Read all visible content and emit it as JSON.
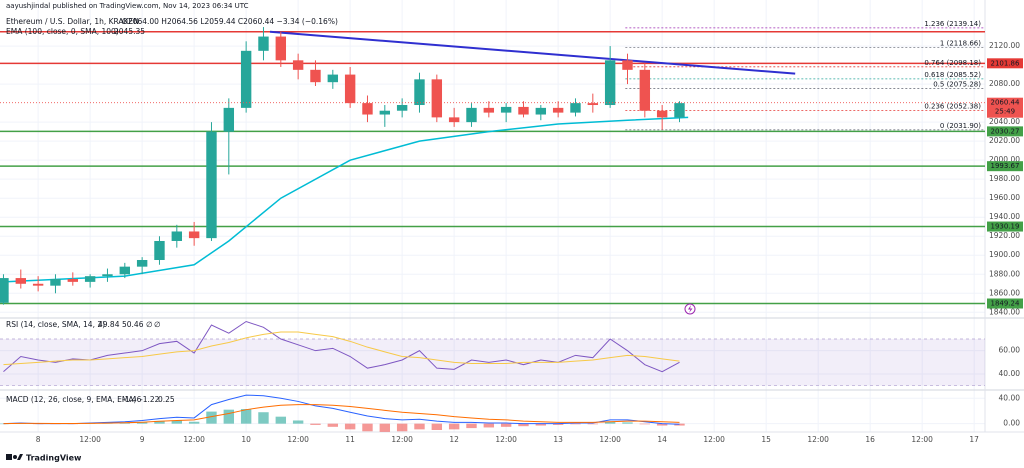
{
  "header": {
    "publisher": "aayushjindal published on TradingView.com, Nov 14, 2023 06:34 UTC",
    "symbol": "Ethereum / U.S. Dollar, 1h, KRAKEN",
    "ohlc": "O2064.00 H2064.56 L2059.44 C2060.44 −3.34 (−0.16%)",
    "ema_label": "EMA (100, close, 0, SMA, 100)",
    "ema_value": 2045.35
  },
  "footer": {
    "brand": "TradingView"
  },
  "chart_data": [
    {
      "type": "candlestick",
      "x": [
        -8,
        -4,
        0,
        4,
        8,
        12,
        16,
        20,
        24,
        28,
        32,
        36,
        40,
        44,
        48,
        52,
        56,
        60,
        64,
        68,
        72,
        76,
        80,
        84,
        88,
        92,
        96,
        100,
        104,
        108,
        112,
        116,
        120,
        124,
        128,
        132,
        136,
        140,
        144,
        148
      ],
      "open": [
        1850,
        1876,
        1870,
        1868,
        1875,
        1872,
        1878,
        1880,
        1888,
        1895,
        1915,
        1925,
        1918,
        2030,
        2055,
        2115,
        2130,
        2105,
        2095,
        2082,
        2090,
        2060,
        2048,
        2052,
        2058,
        2085,
        2045,
        2040,
        2055,
        2050,
        2056,
        2048,
        2055,
        2050,
        2060,
        2058,
        2105,
        2095,
        2052,
        2045
      ],
      "high": [
        1880,
        1885,
        1878,
        1880,
        1882,
        1880,
        1886,
        1892,
        1898,
        1920,
        1932,
        1935,
        2040,
        2065,
        2125,
        2140,
        2135,
        2112,
        2105,
        2095,
        2098,
        2068,
        2058,
        2065,
        2092,
        2090,
        2055,
        2060,
        2062,
        2060,
        2062,
        2058,
        2062,
        2065,
        2070,
        2120,
        2112,
        2102,
        2058,
        2062
      ],
      "low": [
        1848,
        1865,
        1862,
        1860,
        1868,
        1866,
        1872,
        1876,
        1880,
        1890,
        1908,
        1910,
        1915,
        1985,
        2050,
        2105,
        2098,
        2085,
        2078,
        2075,
        2055,
        2040,
        2035,
        2045,
        2050,
        2040,
        2035,
        2035,
        2045,
        2040,
        2045,
        2042,
        2045,
        2046,
        2050,
        2055,
        2080,
        2045,
        2032,
        2040
      ],
      "close": [
        1876,
        1870,
        1868,
        1875,
        1872,
        1878,
        1880,
        1888,
        1895,
        1915,
        1925,
        1918,
        2030,
        2055,
        2115,
        2130,
        2105,
        2095,
        2082,
        2090,
        2060,
        2048,
        2052,
        2058,
        2085,
        2045,
        2040,
        2055,
        2050,
        2056,
        2048,
        2055,
        2050,
        2060,
        2058,
        2105,
        2095,
        2052,
        2045,
        2060
      ],
      "up_color": "#26a69a",
      "down_color": "#ef5350",
      "xlim": [
        -8.8,
        218.5
      ],
      "xticks": [
        {
          "value": 0,
          "label": "8"
        },
        {
          "value": 12,
          "label": "12:00"
        },
        {
          "value": 24,
          "label": "9"
        },
        {
          "value": 36,
          "label": "12:00"
        },
        {
          "value": 48,
          "label": "10"
        },
        {
          "value": 60,
          "label": "12:00"
        },
        {
          "value": 72,
          "label": "11"
        },
        {
          "value": 84,
          "label": "12:00"
        },
        {
          "value": 96,
          "label": "12"
        },
        {
          "value": 108,
          "label": "12:00"
        },
        {
          "value": 120,
          "label": "13"
        },
        {
          "value": 132,
          "label": "12:00"
        },
        {
          "value": 144,
          "label": "14"
        },
        {
          "value": 156,
          "label": "12:00"
        },
        {
          "value": 168,
          "label": "15"
        },
        {
          "value": 180,
          "label": "12:00"
        },
        {
          "value": 192,
          "label": "16"
        },
        {
          "value": 204,
          "label": "12:00"
        },
        {
          "value": 216,
          "label": "17"
        }
      ],
      "ylim": [
        1834,
        2139
      ],
      "yticks": [
        {
          "value": 2120,
          "label": "2120.00"
        },
        {
          "value": 2080,
          "label": "2080.00"
        },
        {
          "value": 2040,
          "label": "2040.00"
        },
        {
          "value": 2020,
          "label": "2020.00"
        },
        {
          "value": 2000,
          "label": "2000.00"
        },
        {
          "value": 1980,
          "label": "1980.00"
        },
        {
          "value": 1960,
          "label": "1960.00"
        },
        {
          "value": 1940,
          "label": "1940.00"
        },
        {
          "value": 1920,
          "label": "1920.00"
        },
        {
          "value": 1900,
          "label": "1900.00"
        },
        {
          "value": 1880,
          "label": "1880.00"
        },
        {
          "value": 1860,
          "label": "1860.00"
        },
        {
          "value": 1840,
          "label": "1840.00"
        }
      ],
      "grid": true,
      "ema": {
        "x": [
          -8,
          20,
          36,
          44,
          56,
          72,
          88,
          104,
          120,
          136,
          150
        ],
        "values": [
          1872,
          1878,
          1890,
          1915,
          1960,
          2000,
          2020,
          2030,
          2038,
          2042,
          2045
        ],
        "color": "#00bcd4"
      },
      "trendline": {
        "x": [
          53.5,
          174.7
        ],
        "values": [
          2135,
          2091
        ],
        "color": "#2f2fd0"
      },
      "levels": [
        {
          "value": 2135,
          "color": "#e53935",
          "tag": false
        },
        {
          "value": 2101.86,
          "color": "#e53935",
          "tag": true
        },
        {
          "value": 2030.27,
          "color": "#43a047",
          "tag": true
        },
        {
          "value": 1993.67,
          "color": "#43a047",
          "tag": true
        },
        {
          "value": 1930.19,
          "color": "#43a047",
          "tag": true
        },
        {
          "value": 1849.24,
          "color": "#43a047",
          "tag": true
        }
      ],
      "fibonacci": {
        "x_start": 135.5,
        "levels": [
          {
            "label": "1.236 (2139.14)",
            "value": 2139.14,
            "color": "#9c27b0"
          },
          {
            "label": "1 (2118.66)",
            "value": 2118.66,
            "color": "#787b86"
          },
          {
            "label": "0.764 (2098.18)",
            "value": 2098.18,
            "color": "#e53935"
          },
          {
            "label": "0.618 (2085.52)",
            "value": 2085.52,
            "color": "#26a69a"
          },
          {
            "label": "0.5 (2075.28)",
            "value": 2075.28,
            "color": "#787b86"
          },
          {
            "label": "0.236 (2052.38)",
            "value": 2052.38,
            "color": "#e53935"
          },
          {
            "label": "0 (2031.90)",
            "value": 2031.9,
            "color": "#787b86"
          }
        ]
      },
      "last_price": {
        "value": 2060.44,
        "countdown": "25:49",
        "color": "#ef5350"
      }
    },
    {
      "type": "line",
      "title": "RSI (14, close, SMA, 14, 2)",
      "legend_values": [
        49.84,
        50.46
      ],
      "legend_extra": [
        "∅",
        "∅"
      ],
      "x": [
        -8,
        -4,
        0,
        4,
        8,
        12,
        16,
        20,
        24,
        28,
        32,
        36,
        40,
        44,
        48,
        52,
        56,
        60,
        64,
        68,
        72,
        76,
        80,
        84,
        88,
        92,
        96,
        100,
        104,
        108,
        112,
        116,
        120,
        124,
        128,
        132,
        136,
        140,
        144,
        148
      ],
      "series": [
        {
          "color": "#7e57c2",
          "values": [
            42,
            55,
            52,
            50,
            53,
            52,
            56,
            58,
            60,
            66,
            68,
            58,
            82,
            75,
            85,
            80,
            70,
            65,
            60,
            62,
            55,
            45,
            48,
            52,
            60,
            45,
            44,
            52,
            50,
            52,
            48,
            52,
            50,
            56,
            54,
            70,
            60,
            48,
            42,
            50
          ]
        },
        {
          "color": "#f7c948",
          "values": [
            48,
            49,
            50,
            51,
            52,
            52,
            53,
            54,
            55,
            57,
            59,
            60,
            64,
            67,
            71,
            74,
            76,
            76,
            74,
            72,
            68,
            63,
            59,
            55,
            54,
            52,
            50,
            49,
            49,
            49,
            50,
            50,
            50,
            51,
            52,
            54,
            56,
            55,
            53,
            51
          ]
        }
      ],
      "ylim": [
        28,
        88
      ],
      "yticks": [
        {
          "value": 60,
          "label": "60.00"
        },
        {
          "value": 40,
          "label": "40.00"
        }
      ],
      "band": [
        30,
        70
      ],
      "band_color": "#7e57c2"
    },
    {
      "type": "macd",
      "title": "MACD (12, 26, close, 9, EMA, EMA)",
      "legend_values": [
        -1.46,
        -1.22,
        0.25
      ],
      "x": [
        -8,
        -4,
        0,
        4,
        8,
        12,
        16,
        20,
        24,
        28,
        32,
        36,
        40,
        44,
        48,
        52,
        56,
        60,
        64,
        68,
        72,
        76,
        80,
        84,
        88,
        92,
        96,
        100,
        104,
        108,
        112,
        116,
        120,
        124,
        128,
        132,
        136,
        140,
        144,
        148
      ],
      "histogram": {
        "up_color": "#26a69a",
        "down_color": "#ef5350",
        "values": [
          0,
          0.5,
          -0.5,
          -0.3,
          -0.2,
          0.6,
          1.2,
          1.6,
          2.7,
          4.3,
          5,
          3,
          19,
          22,
          23,
          18,
          11,
          5,
          -2,
          -5,
          -9,
          -12,
          -13,
          -12,
          -9,
          -10,
          -9,
          -7,
          -6,
          -5,
          -4,
          -3,
          -2,
          -1,
          -1,
          3,
          2,
          -1,
          -3,
          -3
        ]
      },
      "series": [
        {
          "color": "#2962ff",
          "values": [
            0,
            1,
            0,
            0,
            0,
            1,
            2,
            3,
            5,
            8,
            10,
            9,
            30,
            38,
            45,
            44,
            40,
            35,
            28,
            24,
            18,
            12,
            8,
            6,
            7,
            4,
            2,
            2,
            1,
            1,
            0,
            0,
            0,
            1,
            1,
            6,
            6,
            3,
            0,
            -1
          ]
        },
        {
          "color": "#ff6d00",
          "values": [
            0,
            0.5,
            0.5,
            0.3,
            0.2,
            0.4,
            0.8,
            1.4,
            2.3,
            3.7,
            5,
            6,
            11,
            16,
            22,
            26,
            29,
            30,
            30,
            29,
            27,
            24,
            21,
            18,
            16,
            14,
            11,
            9,
            7,
            6,
            4,
            3,
            2,
            2,
            2,
            3,
            4,
            4,
            3,
            2
          ]
        }
      ],
      "ylim": [
        -10,
        53
      ],
      "yticks": [
        {
          "value": 40,
          "label": "40.00"
        },
        {
          "value": 0,
          "label": "0.00"
        }
      ]
    }
  ]
}
